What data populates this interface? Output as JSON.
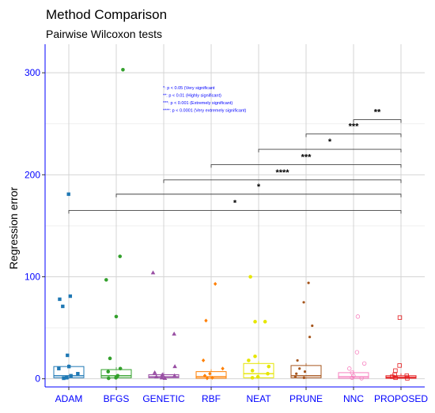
{
  "chart_data": {
    "type": "box-jitter",
    "title": "Method Comparison",
    "subtitle": "Pairwise Wilcoxon tests",
    "ylabel": "Regression error",
    "xlabel": "",
    "ylim": [
      -8,
      328
    ],
    "yticks": [
      0,
      100,
      200,
      300
    ],
    "grid": true,
    "categories": [
      "ADAM",
      "BFGS",
      "GENETIC",
      "RBF",
      "NEAT",
      "PRUNE",
      "NNC",
      "PROPOSED"
    ],
    "colors": {
      "ADAM": "#1f78b4",
      "BFGS": "#33a02c",
      "GENETIC": "#984ea3",
      "RBF": "#ff7f00",
      "NEAT": "#e6e600",
      "PRUNE": "#a6561d",
      "NNC": "#f781bf",
      "PROPOSED": "#e41a1c"
    },
    "markers": {
      "ADAM": "square",
      "BFGS": "circle",
      "GENETIC": "triangle",
      "RBF": "diamond",
      "NEAT": "circle",
      "PRUNE": "smallcircle",
      "NNC": "opencircle",
      "PROPOSED": "opensquare"
    },
    "boxes": {
      "ADAM": [
        0,
        1,
        3,
        12,
        181
      ],
      "BFGS": [
        0,
        1,
        3,
        9,
        303
      ],
      "GENETIC": [
        0,
        1,
        2,
        4,
        104
      ],
      "RBF": [
        0,
        0.5,
        2,
        7,
        93
      ],
      "NEAT": [
        0,
        1,
        5,
        15,
        100
      ],
      "PRUNE": [
        0,
        1,
        3,
        13,
        95
      ],
      "NNC": [
        0,
        0.5,
        2,
        6,
        61
      ],
      "PROPOSED": [
        0,
        0.5,
        1.5,
        3,
        61
      ]
    },
    "points": {
      "ADAM": [
        181,
        81,
        78,
        71,
        23,
        12,
        10,
        5,
        3,
        1,
        0.5
      ],
      "BFGS": [
        303,
        120,
        97,
        61,
        20,
        10,
        7,
        3,
        1,
        0.5
      ],
      "GENETIC": [
        104,
        44,
        12,
        6,
        4,
        3,
        2,
        1,
        0.5
      ],
      "RBF": [
        93,
        57,
        18,
        10,
        5,
        3,
        1,
        0.5
      ],
      "NEAT": [
        100,
        56,
        56,
        22,
        18,
        12,
        8,
        5,
        2,
        1
      ],
      "PRUNE": [
        94,
        75,
        52,
        41,
        18,
        10,
        7,
        5,
        2,
        1
      ],
      "NNC": [
        61,
        26,
        15,
        10,
        6,
        3,
        1,
        0.5
      ],
      "PROPOSED": [
        60,
        13,
        8,
        4,
        3,
        2,
        1,
        0.5
      ]
    },
    "comparisons": [
      {
        "from": "NNC",
        "to": "PROPOSED",
        "y": 254,
        "label": "**"
      },
      {
        "from": "PRUNE",
        "to": "PROPOSED",
        "y": 240,
        "label": "***"
      },
      {
        "from": "NEAT",
        "to": "PROPOSED",
        "y": 225,
        "label": "*"
      },
      {
        "from": "RBF",
        "to": "PROPOSED",
        "y": 210,
        "label": "***"
      },
      {
        "from": "GENETIC",
        "to": "PROPOSED",
        "y": 195,
        "label": "****"
      },
      {
        "from": "BFGS",
        "to": "PROPOSED",
        "y": 181,
        "label": "*"
      },
      {
        "from": "ADAM",
        "to": "PROPOSED",
        "y": 165,
        "label": "*"
      }
    ],
    "significance_legend": [
      "*: p < 0.05 (Very significant",
      "**: p < 0.01 (Highly significant)",
      "***: p < 0.001  (Extremely significant)",
      "****: p < 0.0001  (Very extremely significant)"
    ]
  }
}
